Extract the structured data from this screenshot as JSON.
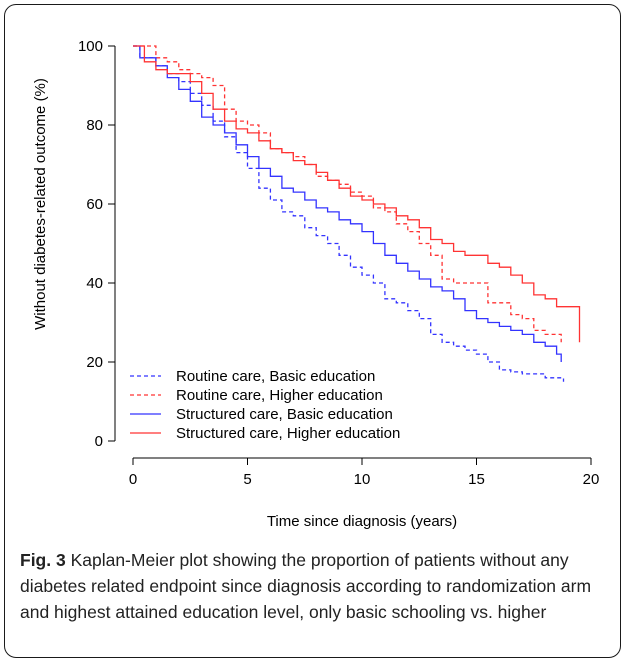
{
  "caption": {
    "label": "Fig. 3",
    "text": " Kaplan-Meier plot showing the proportion of patients without any diabetes related endpoint since diagnosis according to randomization arm and highest attained education level, only basic schooling vs. higher"
  },
  "chart_data": {
    "type": "line",
    "title": "",
    "xlabel": "Time since diagnosis (years)",
    "ylabel": "Without diabetes-related outcome (%)",
    "xlim": [
      0,
      20
    ],
    "ylim": [
      0,
      100
    ],
    "x_ticks": [
      0,
      5,
      10,
      15,
      20
    ],
    "y_ticks": [
      0,
      20,
      40,
      60,
      80,
      100
    ],
    "grid": false,
    "legend_position": "bottom-left",
    "series": [
      {
        "name": "Routine care, Basic education",
        "color": "#3333ff",
        "dash": "dashed",
        "x": [
          0,
          0.3,
          1,
          1.5,
          2,
          2.5,
          3,
          3.5,
          4,
          4.5,
          5,
          5.5,
          6,
          6.5,
          7,
          7.5,
          8,
          8.5,
          9,
          9.5,
          10,
          10.5,
          11,
          11.5,
          12,
          12.5,
          13,
          13.5,
          14,
          14.5,
          15,
          15.5,
          16,
          16.5,
          17,
          17.5,
          18,
          18.5,
          18.8
        ],
        "y": [
          100,
          97,
          95,
          93,
          91,
          88,
          85,
          81,
          77,
          73,
          69,
          64,
          61,
          58,
          57,
          54,
          52,
          50,
          47,
          44,
          42,
          40,
          36,
          35,
          33,
          31,
          27,
          25,
          24,
          23,
          22,
          20,
          18,
          17.5,
          17,
          17,
          16,
          16,
          15
        ]
      },
      {
        "name": "Routine care, Higher education",
        "color": "#ff3333",
        "dash": "dashed",
        "x": [
          0,
          0.5,
          1,
          1.5,
          2,
          2.5,
          3,
          3.5,
          4,
          4.5,
          5,
          5.5,
          6,
          6.5,
          7,
          7.5,
          8,
          8.5,
          9,
          9.5,
          10,
          10.5,
          11,
          11.5,
          12,
          12.5,
          13,
          13.5,
          14,
          14.5,
          15,
          15.5,
          16,
          16.5,
          17,
          17.5,
          18,
          18.5,
          18.7
        ],
        "y": [
          100,
          100,
          97,
          96,
          94,
          93,
          92,
          90,
          84,
          81,
          80,
          78,
          74,
          73,
          72,
          70,
          67,
          66,
          65,
          63,
          62,
          59,
          58,
          55,
          53,
          50,
          47,
          41,
          40,
          40,
          40,
          35,
          35,
          32,
          31,
          28,
          27,
          27,
          25
        ]
      },
      {
        "name": "Structured care, Basic education",
        "color": "#3333ff",
        "dash": "solid",
        "x": [
          0,
          0.3,
          1,
          1.5,
          2,
          2.5,
          3,
          3.5,
          4,
          4.5,
          5,
          5.5,
          6,
          6.5,
          7,
          7.5,
          8,
          8.5,
          9,
          9.5,
          10,
          10.5,
          11,
          11.5,
          12,
          12.5,
          13,
          13.5,
          14,
          14.5,
          15,
          15.5,
          16,
          16.5,
          17,
          17.5,
          18,
          18.5,
          18.7
        ],
        "y": [
          100,
          97,
          95,
          92,
          89,
          86,
          82,
          80,
          78,
          75,
          72,
          69,
          67,
          64,
          63,
          61,
          59,
          58,
          56,
          55,
          53,
          50,
          47,
          45,
          43,
          41,
          39,
          38,
          36,
          33,
          31,
          30,
          29,
          28,
          27,
          25,
          24,
          22,
          20
        ]
      },
      {
        "name": "Structured care, Higher education",
        "color": "#ff3333",
        "dash": "solid",
        "x": [
          0,
          0.5,
          1,
          1.5,
          2,
          2.5,
          3,
          3.5,
          4,
          4.5,
          5,
          5.5,
          6,
          6.5,
          7,
          7.5,
          8,
          8.5,
          9,
          9.5,
          10,
          10.5,
          11,
          11.5,
          12,
          12.5,
          13,
          13.5,
          14,
          14.5,
          15,
          15.5,
          16,
          16.5,
          17,
          17.5,
          18,
          18.5,
          19,
          19.4,
          19.5
        ],
        "y": [
          100,
          96,
          94,
          93,
          93,
          91,
          88,
          84,
          81,
          79,
          78,
          76,
          74,
          73,
          71,
          70,
          68,
          66,
          64,
          62,
          61,
          60,
          59,
          57,
          56,
          54,
          51,
          50,
          48,
          47,
          47,
          45,
          44,
          42,
          40,
          37,
          36,
          34,
          34,
          34,
          25
        ]
      }
    ]
  }
}
